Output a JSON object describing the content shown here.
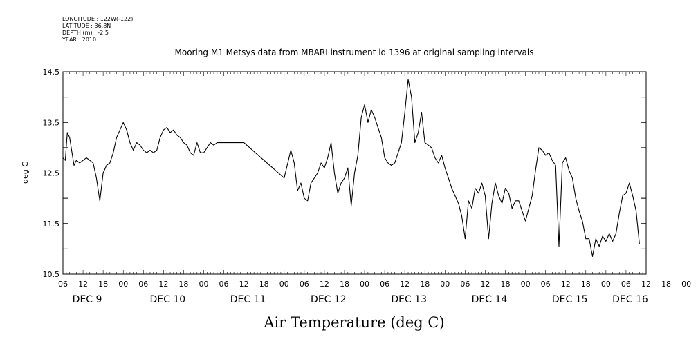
{
  "header": {
    "longitude": "LONGITUDE : 122W(-122)",
    "latitude": "LATITUDE : 36.8N",
    "depth": "DEPTH (m) : -2.5",
    "year": "YEAR : 2010"
  },
  "chart_data": {
    "type": "line",
    "title": "Mooring M1 Metsys data from MBARI instrument id 1396 at original sampling intervals",
    "xlabel": "Air Temperature (deg C)",
    "ylabel": "deg C",
    "ylim": [
      10.5,
      14.5
    ],
    "yticks": [
      "10.5",
      "11.5",
      "12.5",
      "13.5",
      "14.5"
    ],
    "xlim_hours": [
      0,
      174
    ],
    "hour_tick_labels": [
      "06",
      "12",
      "18",
      "00",
      "06",
      "12",
      "18",
      "00",
      "06",
      "12",
      "18",
      "00",
      "06",
      "12",
      "18",
      "00",
      "06",
      "12",
      "18",
      "00",
      "06",
      "12",
      "18",
      "00",
      "06",
      "12",
      "18",
      "00",
      "06",
      "12",
      "18",
      "00",
      "06"
    ],
    "day_labels": [
      "DEC  9",
      "DEC 10",
      "DEC 11",
      "DEC 12",
      "DEC 13",
      "DEC 14",
      "DEC 15",
      "DEC 16"
    ],
    "x_units": "hours after Dec 9 06:00",
    "series": [
      {
        "color": "#000000",
        "x": [
          0,
          0.7,
          1.3,
          2,
          2.7,
          3.3,
          4,
          5,
          6,
          7,
          8,
          9,
          10,
          11,
          12,
          13,
          14,
          15,
          16,
          17,
          18,
          19,
          20,
          21,
          22,
          23,
          24,
          25,
          26,
          27,
          28,
          29,
          30,
          31,
          32,
          33,
          34,
          35,
          36,
          37,
          38,
          39,
          40,
          41,
          42,
          43,
          44,
          45,
          46,
          47,
          48,
          49,
          50,
          51,
          52,
          53,
          54,
          60,
          66,
          68,
          69,
          70,
          71,
          72,
          73,
          74,
          75,
          76,
          77,
          78,
          79,
          80,
          81,
          82,
          83,
          84,
          85,
          86,
          87,
          88,
          89,
          90,
          91,
          92,
          93,
          94,
          95,
          96,
          97,
          98,
          99,
          100,
          101,
          102,
          103,
          104,
          105,
          106,
          107,
          108,
          109,
          110,
          111,
          112,
          113,
          114,
          115,
          116,
          117,
          118,
          119,
          120,
          121,
          122,
          123,
          124,
          125,
          126,
          127,
          128,
          129,
          130,
          131,
          132,
          133,
          134,
          135,
          136,
          137,
          138,
          139,
          140,
          141,
          142,
          143,
          144,
          145,
          146,
          147,
          148,
          149,
          150,
          151,
          152,
          153,
          154,
          155,
          156,
          157,
          158,
          159,
          160,
          161,
          162,
          163,
          164,
          165,
          166,
          167,
          168,
          169,
          170,
          171,
          172
        ],
        "values": [
          12.8,
          12.75,
          13.3,
          13.2,
          12.9,
          12.65,
          12.75,
          12.7,
          12.75,
          12.8,
          12.75,
          12.7,
          12.4,
          11.95,
          12.5,
          12.65,
          12.7,
          12.9,
          13.2,
          13.35,
          13.5,
          13.35,
          13.1,
          12.95,
          13.1,
          13.05,
          12.95,
          12.9,
          12.95,
          12.9,
          12.95,
          13.2,
          13.35,
          13.4,
          13.3,
          13.35,
          13.25,
          13.2,
          13.1,
          13.05,
          12.9,
          12.85,
          13.1,
          12.9,
          12.9,
          13.0,
          13.1,
          13.05,
          13.1,
          13.1,
          13.1,
          13.1,
          13.1,
          13.1,
          13.1,
          13.1,
          13.1,
          12.75,
          12.4,
          12.95,
          12.7,
          12.15,
          12.3,
          12.0,
          11.95,
          12.3,
          12.4,
          12.5,
          12.7,
          12.6,
          12.8,
          13.1,
          12.5,
          12.1,
          12.3,
          12.4,
          12.6,
          11.85,
          12.5,
          12.85,
          13.6,
          13.85,
          13.5,
          13.75,
          13.6,
          13.4,
          13.2,
          12.8,
          12.7,
          12.65,
          12.7,
          12.9,
          13.1,
          13.7,
          14.35,
          14.0,
          13.1,
          13.3,
          13.7,
          13.1,
          13.05,
          13.0,
          12.8,
          12.7,
          12.85,
          12.6,
          12.4,
          12.2,
          12.05,
          11.9,
          11.65,
          11.2,
          11.95,
          11.8,
          12.2,
          12.1,
          12.3,
          12.05,
          11.2,
          11.9,
          12.3,
          12.05,
          11.9,
          12.2,
          12.1,
          11.8,
          11.95,
          11.95,
          11.75,
          11.55,
          11.8,
          12.05,
          12.55,
          13.0,
          12.95,
          12.85,
          12.9,
          12.75,
          12.65,
          11.05,
          12.7,
          12.8,
          12.55,
          12.4,
          12.0,
          11.75,
          11.55,
          11.2,
          11.2,
          10.85,
          11.2,
          11.05,
          11.25,
          11.15,
          11.3,
          11.15,
          11.3,
          11.7,
          12.05,
          12.1,
          12.3,
          12.05,
          11.75,
          11.1
        ]
      }
    ],
    "grid": false
  }
}
